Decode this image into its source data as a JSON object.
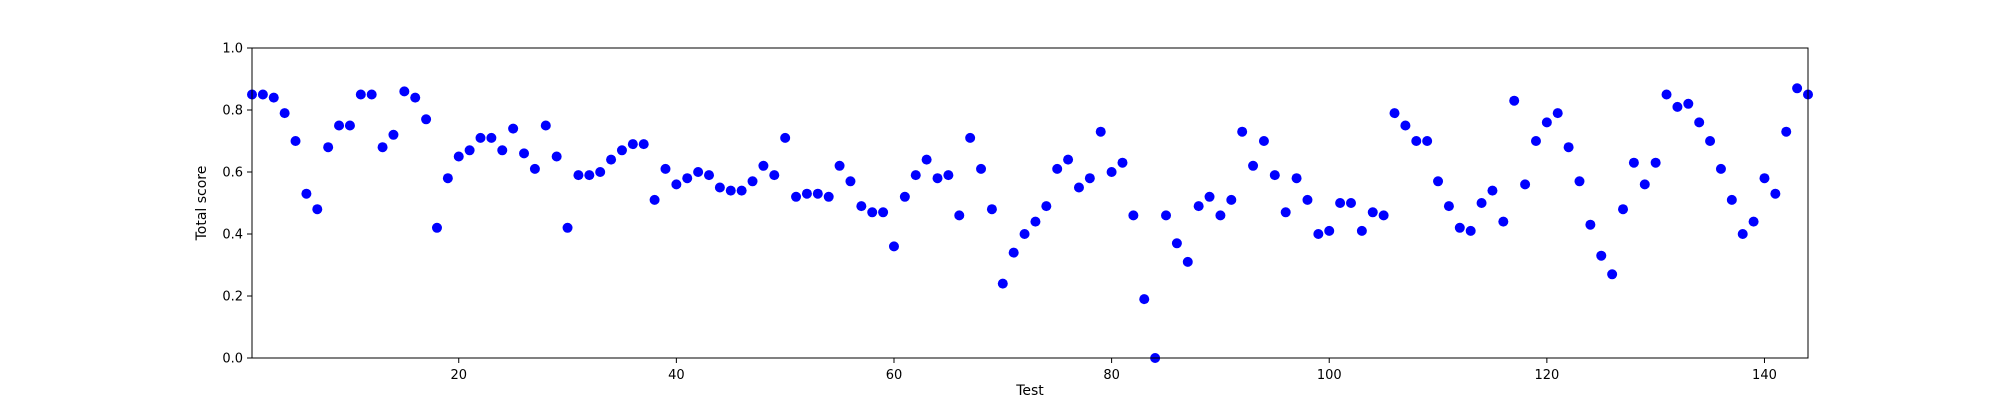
{
  "chart_data": {
    "type": "scatter",
    "title": "",
    "xlabel": "Test",
    "ylabel": "Total score",
    "xlim": [
      1,
      144
    ],
    "ylim": [
      0.0,
      1.0
    ],
    "x_ticks": [
      20,
      40,
      60,
      80,
      100,
      120,
      140
    ],
    "y_ticks": [
      0.0,
      0.2,
      0.4,
      0.6,
      0.8,
      1.0
    ],
    "y_tick_labels": [
      "0.0",
      "0.2",
      "0.4",
      "0.6",
      "0.8",
      "1.0"
    ],
    "grid": false,
    "legend": "none",
    "marker_color": "#0000ff",
    "series": [
      {
        "x": [
          1,
          2,
          3,
          4,
          5,
          6,
          7,
          8,
          9,
          10,
          11,
          12,
          13,
          14,
          15,
          16,
          17,
          18,
          19,
          20,
          21,
          22,
          23,
          24,
          25,
          26,
          27,
          28,
          29,
          30,
          31,
          32,
          33,
          34,
          35,
          36,
          37,
          38,
          39,
          40,
          41,
          42,
          43,
          44,
          45,
          46,
          47,
          48,
          49,
          50,
          51,
          52,
          53,
          54,
          55,
          56,
          57,
          58,
          59,
          60,
          61,
          62,
          63,
          64,
          65,
          66,
          67,
          68,
          69,
          70,
          71,
          72,
          73,
          74,
          75,
          76,
          77,
          78,
          79,
          80,
          81,
          82,
          83,
          84,
          85,
          86,
          87,
          88,
          89,
          90,
          91,
          92,
          93,
          94,
          95,
          96,
          97,
          98,
          99,
          100,
          101,
          102,
          103,
          104,
          105,
          106,
          107,
          108,
          109,
          110,
          111,
          112,
          113,
          114,
          115,
          116,
          117,
          118,
          119,
          120,
          121,
          122,
          123,
          124,
          125,
          126,
          127,
          128,
          129,
          130,
          131,
          132,
          133,
          134,
          135,
          136,
          137,
          138,
          139,
          140,
          141,
          142,
          143,
          144
        ],
        "y": [
          0.85,
          0.85,
          0.84,
          0.79,
          0.7,
          0.53,
          0.48,
          0.68,
          0.75,
          0.75,
          0.85,
          0.85,
          0.68,
          0.72,
          0.86,
          0.84,
          0.77,
          0.42,
          0.58,
          0.65,
          0.67,
          0.71,
          0.71,
          0.67,
          0.74,
          0.66,
          0.61,
          0.75,
          0.65,
          0.42,
          0.59,
          0.59,
          0.6,
          0.64,
          0.67,
          0.69,
          0.69,
          0.51,
          0.61,
          0.56,
          0.58,
          0.6,
          0.59,
          0.55,
          0.54,
          0.54,
          0.57,
          0.62,
          0.59,
          0.71,
          0.52,
          0.53,
          0.53,
          0.52,
          0.62,
          0.57,
          0.49,
          0.47,
          0.47,
          0.36,
          0.52,
          0.59,
          0.64,
          0.58,
          0.59,
          0.46,
          0.71,
          0.61,
          0.48,
          0.24,
          0.34,
          0.4,
          0.44,
          0.49,
          0.61,
          0.64,
          0.55,
          0.58,
          0.73,
          0.6,
          0.63,
          0.46,
          0.19,
          0.0,
          0.46,
          0.37,
          0.31,
          0.49,
          0.52,
          0.46,
          0.51,
          0.73,
          0.62,
          0.7,
          0.59,
          0.47,
          0.58,
          0.51,
          0.4,
          0.41,
          0.5,
          0.5,
          0.41,
          0.47,
          0.46,
          0.79,
          0.75,
          0.7,
          0.7,
          0.57,
          0.49,
          0.42,
          0.41,
          0.5,
          0.54,
          0.44,
          0.83,
          0.56,
          0.7,
          0.76,
          0.79,
          0.68,
          0.57,
          0.43,
          0.33,
          0.27,
          0.48,
          0.63,
          0.56,
          0.63,
          0.85,
          0.81,
          0.82,
          0.76,
          0.7,
          0.61,
          0.51,
          0.4,
          0.44,
          0.58,
          0.53,
          0.73,
          0.87,
          0.85
        ]
      }
    ]
  }
}
